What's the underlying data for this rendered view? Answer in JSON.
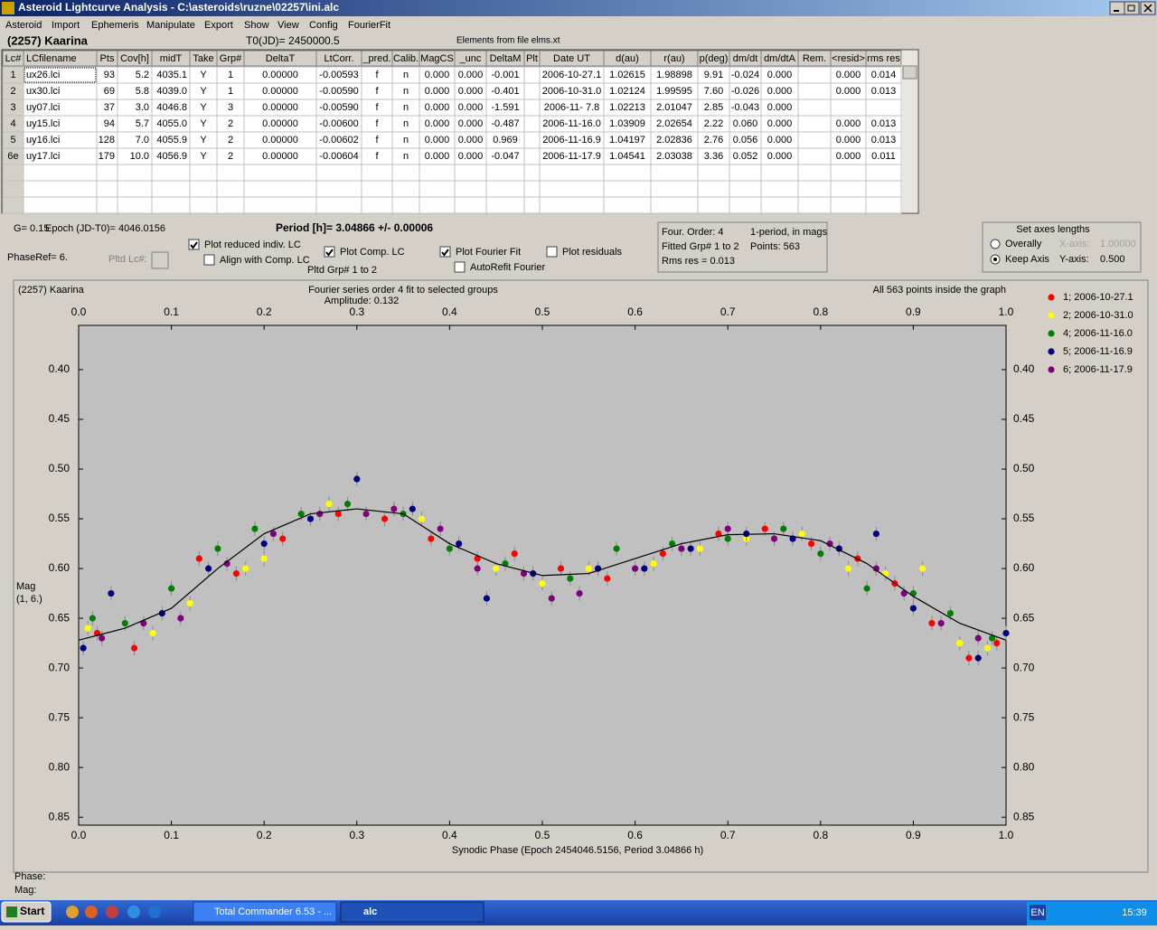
{
  "window": {
    "title": "Asteroid Lightcurve Analysis - C:\\asteroids\\ruzne\\02257\\ini.alc"
  },
  "menu": [
    "Asteroid",
    "Import",
    "Ephemeris",
    "Manipulate",
    "Export",
    "Show",
    "View",
    "Config",
    "FourierFit"
  ],
  "header": {
    "object": "(2257) Kaarina",
    "t0": "T0(JD)= 2450000.5",
    "elements": "Elements from file elms.xt"
  },
  "table": {
    "columns": [
      "Lc#",
      "LCfilename",
      "Pts",
      "Cov[h]",
      "midT",
      "Take",
      "Grp#",
      "DeltaT",
      "LtCorr.",
      "_pred.",
      "Calib.",
      "MagCS",
      "_unc",
      "DeltaM",
      "Plt",
      "Date UT",
      "d(au)",
      "r(au)",
      "p(deg)",
      "dm/dt",
      "dm/dtA",
      "Rem.",
      "<resid>",
      "rms res"
    ],
    "rows": [
      [
        "1",
        "ux26.lci",
        "93",
        "5.2",
        "4035.1",
        "Y",
        "1",
        "0.00000",
        "-0.00593",
        "f",
        "n",
        "0.000",
        "0.000",
        "-0.001",
        null,
        "2006-10-27.1",
        "1.02615",
        "1.98898",
        "9.91",
        "-0.024",
        "0.000",
        null,
        "0.000",
        "0.014"
      ],
      [
        "2",
        "ux30.lci",
        "69",
        "5.8",
        "4039.0",
        "Y",
        "1",
        "0.00000",
        "-0.00590",
        "f",
        "n",
        "0.000",
        "0.000",
        "-0.401",
        null,
        "2006-10-31.0",
        "1.02124",
        "1.99595",
        "7.60",
        "-0.026",
        "0.000",
        null,
        "0.000",
        "0.013"
      ],
      [
        "3",
        "uy07.lci",
        "37",
        "3.0",
        "4046.8",
        "Y",
        "3",
        "0.00000",
        "-0.00590",
        "f",
        "n",
        "0.000",
        "0.000",
        "-1.591",
        null,
        "2006-11- 7.8",
        "1.02213",
        "2.01047",
        "2.85",
        "-0.043",
        "0.000",
        null,
        null,
        null
      ],
      [
        "4",
        "uy15.lci",
        "94",
        "5.7",
        "4055.0",
        "Y",
        "2",
        "0.00000",
        "-0.00600",
        "f",
        "n",
        "0.000",
        "0.000",
        "-0.487",
        null,
        "2006-11-16.0",
        "1.03909",
        "2.02654",
        "2.22",
        "0.060",
        "0.000",
        null,
        "0.000",
        "0.013"
      ],
      [
        "5",
        "uy16.lci",
        "128",
        "7.0",
        "4055.9",
        "Y",
        "2",
        "0.00000",
        "-0.00602",
        "f",
        "n",
        "0.000",
        "0.000",
        "0.969",
        null,
        "2006-11-16.9",
        "1.04197",
        "2.02836",
        "2.76",
        "0.056",
        "0.000",
        null,
        "0.000",
        "0.013"
      ],
      [
        "6e",
        "uy17.lci",
        "179",
        "10.0",
        "4056.9",
        "Y",
        "2",
        "0.00000",
        "-0.00604",
        "f",
        "n",
        "0.000",
        "0.000",
        "-0.047",
        null,
        "2006-11-17.9",
        "1.04541",
        "2.03038",
        "3.36",
        "0.052",
        "0.000",
        null,
        "0.000",
        "0.011"
      ]
    ]
  },
  "controls": {
    "g": "G= 0.15",
    "epoch": "Epoch (JD-T0)= 4046.0156",
    "period": "Period [h]= 3.04866 +/- 0.00006",
    "phaseref": "PhaseRef= 6.",
    "pltd_lc": "Pltd Lc#:",
    "pltd_grp": "Pltd Grp#   1    to    2",
    "checkboxes": [
      {
        "label": "Plot reduced indiv. LC",
        "checked": true
      },
      {
        "label": "Align with Comp. LC",
        "checked": false
      },
      {
        "label": "Plot Comp. LC",
        "checked": true
      },
      {
        "label": "Plot Fourier Fit",
        "checked": true
      },
      {
        "label": "Plot residuals",
        "checked": false
      },
      {
        "label": "AutoRefit Fourier",
        "checked": false
      }
    ],
    "fourier": [
      "Four. Order:  4",
      "1-period, in mags",
      "Fitted Grp# 1 to 2",
      "Points: 563",
      "Rms res      = 0.013"
    ],
    "axes": {
      "title": "Set axes lengths",
      "radios": [
        {
          "label": "Overally",
          "checked": false
        },
        {
          "label": "Keep Axis",
          "checked": true
        }
      ],
      "x_label": "X-axis:",
      "x_value": "1.00000",
      "y_label": "Y-axis:",
      "y_value": "0.500"
    }
  },
  "chart_data": {
    "type": "scatter",
    "object": "(2257) Kaarina",
    "title": "Fourier series order 4 fit to selected groups",
    "subtitle": "Amplitude: 0.132",
    "note": "All 563 points inside the graph",
    "xlabel": "Synodic Phase (Epoch 2454046.5156, Period 3.04866 h)",
    "ylabel": [
      "Mag",
      "(1, 6.)"
    ],
    "xlim": [
      0,
      1
    ],
    "ylim": [
      0.3555,
      0.858
    ],
    "y_inverted": true,
    "grid": false,
    "xticks": [
      {
        "value": 0,
        "label": "0.0"
      },
      0.1,
      0.2,
      0.3,
      0.4,
      0.5,
      0.6,
      0.7,
      0.8,
      0.9,
      {
        "value": 1,
        "label": "1.0"
      }
    ],
    "yticks": [
      {
        "value": 0.4,
        "label": "0.40"
      },
      0.45,
      {
        "value": 0.5,
        "label": "0.50"
      },
      0.55,
      {
        "value": 0.6,
        "label": "0.60"
      },
      0.65,
      {
        "value": 0.7,
        "label": "0.70"
      },
      0.75,
      {
        "value": 0.8,
        "label": "0.80"
      },
      0.85
    ],
    "series": [
      {
        "name": "1; 2006-10-27.1",
        "color": "#ff0000",
        "x": [
          0.02,
          0.06,
          0.13,
          0.17,
          0.22,
          0.28,
          0.33,
          0.38,
          0.43,
          0.47,
          0.52,
          0.57,
          0.63,
          0.69,
          0.74,
          0.79,
          0.84,
          0.88,
          0.92,
          0.96,
          0.99
        ],
        "y": [
          0.665,
          0.68,
          0.59,
          0.605,
          0.57,
          0.545,
          0.55,
          0.57,
          0.59,
          0.585,
          0.6,
          0.61,
          0.585,
          0.565,
          0.56,
          0.575,
          0.59,
          0.615,
          0.655,
          0.69,
          0.675
        ]
      },
      {
        "name": "2; 2006-10-31.0",
        "color": "#ffff00",
        "x": [
          0.01,
          0.08,
          0.12,
          0.18,
          0.2,
          0.27,
          0.34,
          0.37,
          0.45,
          0.5,
          0.55,
          0.62,
          0.67,
          0.72,
          0.78,
          0.83,
          0.87,
          0.91,
          0.95,
          0.98
        ],
        "y": [
          0.66,
          0.665,
          0.635,
          0.6,
          0.59,
          0.535,
          0.54,
          0.55,
          0.6,
          0.615,
          0.6,
          0.595,
          0.58,
          0.57,
          0.565,
          0.6,
          0.605,
          0.6,
          0.675,
          0.68
        ]
      },
      {
        "name": "4; 2006-11-16.0",
        "color": "#008000",
        "x": [
          0.015,
          0.05,
          0.1,
          0.15,
          0.19,
          0.24,
          0.29,
          0.35,
          0.4,
          0.46,
          0.53,
          0.58,
          0.64,
          0.7,
          0.76,
          0.8,
          0.85,
          0.9,
          0.94,
          0.985
        ],
        "y": [
          0.65,
          0.655,
          0.62,
          0.58,
          0.56,
          0.545,
          0.535,
          0.545,
          0.58,
          0.595,
          0.61,
          0.58,
          0.575,
          0.57,
          0.56,
          0.585,
          0.62,
          0.625,
          0.645,
          0.67
        ]
      },
      {
        "name": "5; 2006-11-16.9",
        "color": "#000080",
        "x": [
          0.005,
          0.035,
          0.09,
          0.14,
          0.2,
          0.25,
          0.3,
          0.36,
          0.41,
          0.44,
          0.49,
          0.56,
          0.61,
          0.66,
          0.72,
          0.77,
          0.82,
          0.86,
          0.9,
          0.97,
          1
        ],
        "y": [
          0.68,
          0.625,
          0.645,
          0.6,
          0.575,
          0.55,
          0.51,
          0.54,
          0.575,
          0.63,
          0.605,
          0.6,
          0.6,
          0.58,
          0.565,
          0.57,
          0.58,
          0.565,
          0.64,
          0.69,
          0.665
        ]
      },
      {
        "name": "6; 2006-11-17.9",
        "color": "#800080",
        "x": [
          0.025,
          0.07,
          0.11,
          0.16,
          0.21,
          0.26,
          0.31,
          0.34,
          0.39,
          0.43,
          0.48,
          0.51,
          0.54,
          0.6,
          0.65,
          0.7,
          0.75,
          0.81,
          0.86,
          0.89,
          0.93,
          0.97
        ],
        "y": [
          0.67,
          0.655,
          0.65,
          0.595,
          0.565,
          0.545,
          0.545,
          0.54,
          0.56,
          0.6,
          0.605,
          0.63,
          0.625,
          0.6,
          0.58,
          0.56,
          0.57,
          0.575,
          0.6,
          0.625,
          0.655,
          0.67
        ]
      }
    ],
    "fit": {
      "color": "#000000",
      "x": [
        0,
        0.05,
        0.1,
        0.15,
        0.2,
        0.25,
        0.3,
        0.35,
        0.4,
        0.45,
        0.5,
        0.55,
        0.6,
        0.65,
        0.7,
        0.75,
        0.8,
        0.85,
        0.9,
        0.95,
        1
      ],
      "y": [
        0.672,
        0.66,
        0.64,
        0.6,
        0.565,
        0.545,
        0.54,
        0.545,
        0.575,
        0.595,
        0.607,
        0.605,
        0.59,
        0.575,
        0.566,
        0.565,
        0.572,
        0.595,
        0.628,
        0.655,
        0.672
      ]
    }
  },
  "status": {
    "phase": "Phase:",
    "mag": "Mag:"
  },
  "taskbar": {
    "start": "Start",
    "tasks": [
      "Total Commander 6.53 - ...",
      "alc"
    ],
    "lang": "EN",
    "clock": "15:39"
  }
}
